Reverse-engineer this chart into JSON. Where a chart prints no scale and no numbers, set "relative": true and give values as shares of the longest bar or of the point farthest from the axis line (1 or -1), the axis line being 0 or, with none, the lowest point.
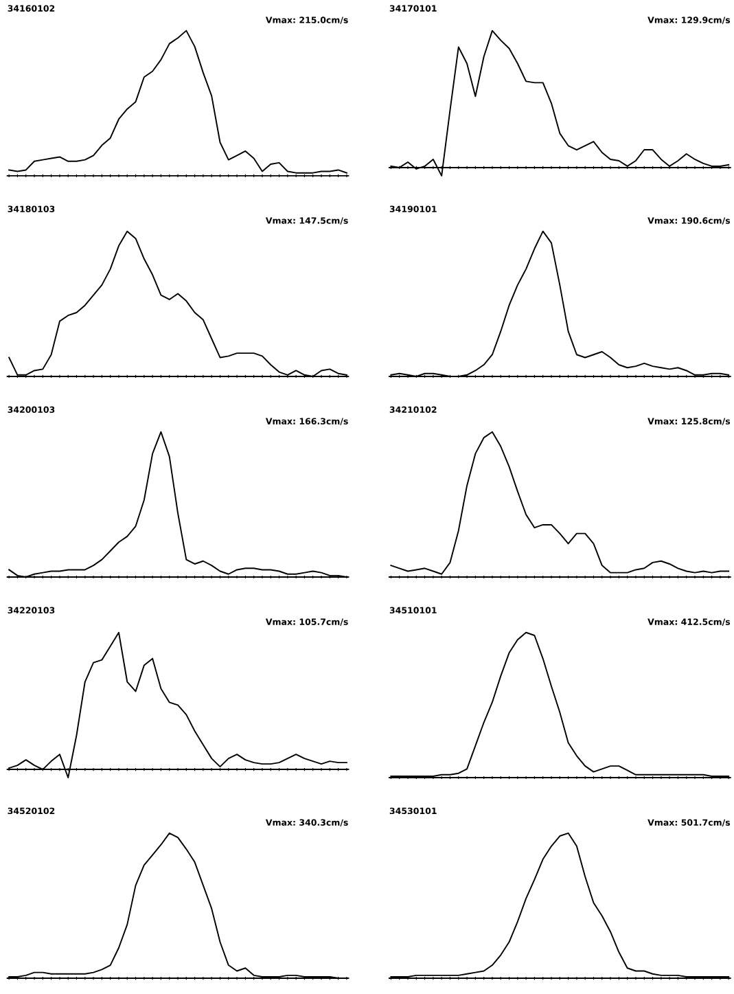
{
  "chart_data": [
    {
      "type": "line",
      "title": "34160102",
      "annotations": [
        "Vmax: 215.0cm/s"
      ],
      "relative": true,
      "categories": [
        null,
        null,
        null,
        null,
        null,
        null,
        null,
        null,
        null,
        null,
        null,
        null,
        null,
        null,
        null,
        null,
        null,
        null,
        null,
        null,
        null,
        null,
        null,
        null,
        null,
        null,
        null,
        null,
        null,
        null,
        null,
        null,
        null,
        null,
        null,
        null,
        null,
        null,
        null,
        null,
        null
      ],
      "series": [
        {
          "color": "#000000",
          "values": [
            0.04,
            0.03,
            0.04,
            0.1,
            0.11,
            0.12,
            0.13,
            0.1,
            0.1,
            0.11,
            0.14,
            0.21,
            0.26,
            0.39,
            0.46,
            0.51,
            0.68,
            0.72,
            0.8,
            0.91,
            0.95,
            1.0,
            0.89,
            0.71,
            0.55,
            0.23,
            0.11,
            0.14,
            0.17,
            0.12,
            0.03,
            0.08,
            0.09,
            0.03,
            0.02,
            0.02,
            0.02,
            0.03,
            0.03,
            0.04,
            0.02
          ]
        }
      ]
    },
    {
      "type": "line",
      "title": "34170101",
      "annotations": [
        "Vmax: 129.9cm/s"
      ],
      "relative": true,
      "categories": [
        null,
        null,
        null,
        null,
        null,
        null,
        null,
        null,
        null,
        null,
        null,
        null,
        null,
        null,
        null,
        null,
        null,
        null,
        null,
        null,
        null,
        null,
        null,
        null,
        null,
        null,
        null,
        null,
        null,
        null,
        null,
        null,
        null,
        null,
        null,
        null,
        null,
        null,
        null,
        null,
        null
      ],
      "series": [
        {
          "color": "#000000",
          "values": [
            0.01,
            0.0,
            0.04,
            -0.01,
            0.01,
            0.06,
            -0.06,
            0.42,
            0.88,
            0.76,
            0.52,
            0.81,
            1.0,
            0.93,
            0.87,
            0.76,
            0.63,
            0.62,
            0.62,
            0.47,
            0.25,
            0.16,
            0.13,
            0.16,
            0.19,
            0.11,
            0.06,
            0.05,
            0.01,
            0.05,
            0.13,
            0.13,
            0.06,
            0.01,
            0.05,
            0.1,
            0.06,
            0.03,
            0.01,
            0.01,
            0.02
          ]
        }
      ]
    },
    {
      "type": "line",
      "title": "34180103",
      "annotations": [
        "Vmax: 147.5cm/s"
      ],
      "relative": true,
      "categories": [
        null,
        null,
        null,
        null,
        null,
        null,
        null,
        null,
        null,
        null,
        null,
        null,
        null,
        null,
        null,
        null,
        null,
        null,
        null,
        null,
        null,
        null,
        null,
        null,
        null,
        null,
        null,
        null,
        null,
        null,
        null,
        null,
        null,
        null,
        null,
        null,
        null,
        null,
        null,
        null,
        null
      ],
      "series": [
        {
          "color": "#000000",
          "values": [
            0.13,
            0.01,
            0.01,
            0.04,
            0.05,
            0.15,
            0.38,
            0.42,
            0.44,
            0.49,
            0.56,
            0.63,
            0.74,
            0.9,
            1.0,
            0.95,
            0.81,
            0.7,
            0.56,
            0.53,
            0.57,
            0.52,
            0.44,
            0.39,
            0.26,
            0.13,
            0.14,
            0.16,
            0.16,
            0.16,
            0.14,
            0.08,
            0.03,
            0.01,
            0.04,
            0.01,
            0.0,
            0.04,
            0.05,
            0.02,
            0.01
          ]
        }
      ]
    },
    {
      "type": "line",
      "title": "34190101",
      "annotations": [
        "Vmax: 190.6cm/s"
      ],
      "relative": true,
      "categories": [
        null,
        null,
        null,
        null,
        null,
        null,
        null,
        null,
        null,
        null,
        null,
        null,
        null,
        null,
        null,
        null,
        null,
        null,
        null,
        null,
        null,
        null,
        null,
        null,
        null,
        null,
        null,
        null,
        null,
        null,
        null,
        null,
        null,
        null,
        null,
        null,
        null,
        null,
        null,
        null,
        null
      ],
      "series": [
        {
          "color": "#000000",
          "values": [
            0.01,
            0.02,
            0.01,
            0.0,
            0.02,
            0.02,
            0.01,
            0.0,
            0.0,
            0.01,
            0.04,
            0.08,
            0.15,
            0.31,
            0.49,
            0.63,
            0.74,
            0.88,
            1.0,
            0.92,
            0.63,
            0.31,
            0.15,
            0.13,
            0.15,
            0.17,
            0.13,
            0.08,
            0.06,
            0.07,
            0.09,
            0.07,
            0.06,
            0.05,
            0.06,
            0.04,
            0.01,
            0.01,
            0.02,
            0.02,
            0.01
          ]
        }
      ]
    },
    {
      "type": "line",
      "title": "34200103",
      "annotations": [
        "Vmax: 166.3cm/s"
      ],
      "relative": true,
      "categories": [
        null,
        null,
        null,
        null,
        null,
        null,
        null,
        null,
        null,
        null,
        null,
        null,
        null,
        null,
        null,
        null,
        null,
        null,
        null,
        null,
        null,
        null,
        null,
        null,
        null,
        null,
        null,
        null,
        null,
        null,
        null,
        null,
        null,
        null,
        null,
        null,
        null,
        null,
        null,
        null,
        null
      ],
      "series": [
        {
          "color": "#000000",
          "values": [
            0.05,
            0.01,
            0.0,
            0.02,
            0.03,
            0.04,
            0.04,
            0.05,
            0.05,
            0.05,
            0.08,
            0.12,
            0.18,
            0.24,
            0.28,
            0.35,
            0.53,
            0.85,
            1.0,
            0.83,
            0.44,
            0.12,
            0.09,
            0.11,
            0.08,
            0.04,
            0.02,
            0.05,
            0.06,
            0.06,
            0.05,
            0.05,
            0.04,
            0.02,
            0.02,
            0.03,
            0.04,
            0.03,
            0.01,
            0.01,
            0.0
          ]
        }
      ]
    },
    {
      "type": "line",
      "title": "34210102",
      "annotations": [
        "Vmax: 125.8cm/s"
      ],
      "relative": true,
      "categories": [
        null,
        null,
        null,
        null,
        null,
        null,
        null,
        null,
        null,
        null,
        null,
        null,
        null,
        null,
        null,
        null,
        null,
        null,
        null,
        null,
        null,
        null,
        null,
        null,
        null,
        null,
        null,
        null,
        null,
        null,
        null,
        null,
        null,
        null,
        null,
        null,
        null,
        null,
        null,
        null,
        null
      ],
      "series": [
        {
          "color": "#000000",
          "values": [
            0.08,
            0.06,
            0.04,
            0.05,
            0.06,
            0.04,
            0.02,
            0.1,
            0.32,
            0.63,
            0.85,
            0.96,
            1.0,
            0.9,
            0.76,
            0.59,
            0.43,
            0.34,
            0.36,
            0.36,
            0.3,
            0.23,
            0.3,
            0.3,
            0.23,
            0.08,
            0.03,
            0.03,
            0.03,
            0.05,
            0.06,
            0.1,
            0.11,
            0.09,
            0.06,
            0.04,
            0.03,
            0.04,
            0.03,
            0.04,
            0.04
          ]
        }
      ]
    },
    {
      "type": "line",
      "title": "34220103",
      "annotations": [
        "Vmax: 105.7cm/s"
      ],
      "relative": true,
      "categories": [
        null,
        null,
        null,
        null,
        null,
        null,
        null,
        null,
        null,
        null,
        null,
        null,
        null,
        null,
        null,
        null,
        null,
        null,
        null,
        null,
        null,
        null,
        null,
        null,
        null,
        null,
        null,
        null,
        null,
        null,
        null,
        null,
        null,
        null,
        null,
        null,
        null,
        null,
        null,
        null,
        null
      ],
      "series": [
        {
          "color": "#000000",
          "values": [
            0.01,
            0.03,
            0.07,
            0.03,
            0.0,
            0.06,
            0.11,
            -0.06,
            0.25,
            0.64,
            0.78,
            0.8,
            0.9,
            1.0,
            0.64,
            0.57,
            0.76,
            0.81,
            0.59,
            0.49,
            0.47,
            0.4,
            0.28,
            0.18,
            0.08,
            0.02,
            0.08,
            0.11,
            0.07,
            0.05,
            0.04,
            0.04,
            0.05,
            0.08,
            0.11,
            0.08,
            0.06,
            0.04,
            0.06,
            0.05,
            0.05
          ]
        }
      ]
    },
    {
      "type": "line",
      "title": "34510101",
      "annotations": [
        "Vmax: 412.5cm/s"
      ],
      "relative": true,
      "categories": [
        null,
        null,
        null,
        null,
        null,
        null,
        null,
        null,
        null,
        null,
        null,
        null,
        null,
        null,
        null,
        null,
        null,
        null,
        null,
        null,
        null,
        null,
        null,
        null,
        null,
        null,
        null,
        null,
        null,
        null,
        null,
        null,
        null,
        null,
        null,
        null,
        null,
        null,
        null,
        null,
        null
      ],
      "series": [
        {
          "color": "#000000",
          "values": [
            0.01,
            0.01,
            0.01,
            0.01,
            0.01,
            0.01,
            0.02,
            0.02,
            0.03,
            0.06,
            0.22,
            0.38,
            0.52,
            0.7,
            0.86,
            0.95,
            1.0,
            0.98,
            0.82,
            0.63,
            0.45,
            0.24,
            0.15,
            0.08,
            0.04,
            0.06,
            0.08,
            0.08,
            0.05,
            0.02,
            0.02,
            0.02,
            0.02,
            0.02,
            0.02,
            0.02,
            0.02,
            0.02,
            0.01,
            0.01,
            0.01
          ]
        }
      ]
    },
    {
      "type": "line",
      "title": "34520102",
      "annotations": [
        "Vmax: 340.3cm/s"
      ],
      "relative": true,
      "categories": [
        null,
        null,
        null,
        null,
        null,
        null,
        null,
        null,
        null,
        null,
        null,
        null,
        null,
        null,
        null,
        null,
        null,
        null,
        null,
        null,
        null,
        null,
        null,
        null,
        null,
        null,
        null,
        null,
        null,
        null,
        null,
        null,
        null,
        null,
        null,
        null,
        null,
        null,
        null,
        null,
        null
      ],
      "series": [
        {
          "color": "#000000",
          "values": [
            0.01,
            0.01,
            0.02,
            0.04,
            0.04,
            0.03,
            0.03,
            0.03,
            0.03,
            0.03,
            0.04,
            0.06,
            0.09,
            0.21,
            0.37,
            0.64,
            0.78,
            0.85,
            0.92,
            1.0,
            0.97,
            0.89,
            0.8,
            0.64,
            0.48,
            0.25,
            0.09,
            0.05,
            0.07,
            0.02,
            0.01,
            0.01,
            0.01,
            0.02,
            0.02,
            0.01,
            0.01,
            0.01,
            0.01,
            0.0,
            0.0
          ]
        }
      ]
    },
    {
      "type": "line",
      "title": "34530101",
      "annotations": [
        "Vmax: 501.7cm/s"
      ],
      "relative": true,
      "categories": [
        null,
        null,
        null,
        null,
        null,
        null,
        null,
        null,
        null,
        null,
        null,
        null,
        null,
        null,
        null,
        null,
        null,
        null,
        null,
        null,
        null,
        null,
        null,
        null,
        null,
        null,
        null,
        null,
        null,
        null,
        null,
        null,
        null,
        null,
        null,
        null,
        null,
        null,
        null,
        null,
        null
      ],
      "series": [
        {
          "color": "#000000",
          "values": [
            0.01,
            0.01,
            0.01,
            0.02,
            0.02,
            0.02,
            0.02,
            0.02,
            0.02,
            0.03,
            0.04,
            0.05,
            0.09,
            0.16,
            0.25,
            0.39,
            0.55,
            0.68,
            0.82,
            0.91,
            0.98,
            1.0,
            0.91,
            0.7,
            0.52,
            0.43,
            0.32,
            0.18,
            0.07,
            0.05,
            0.05,
            0.03,
            0.02,
            0.02,
            0.02,
            0.01,
            0.01,
            0.01,
            0.01,
            0.01,
            0.01
          ]
        }
      ]
    }
  ]
}
